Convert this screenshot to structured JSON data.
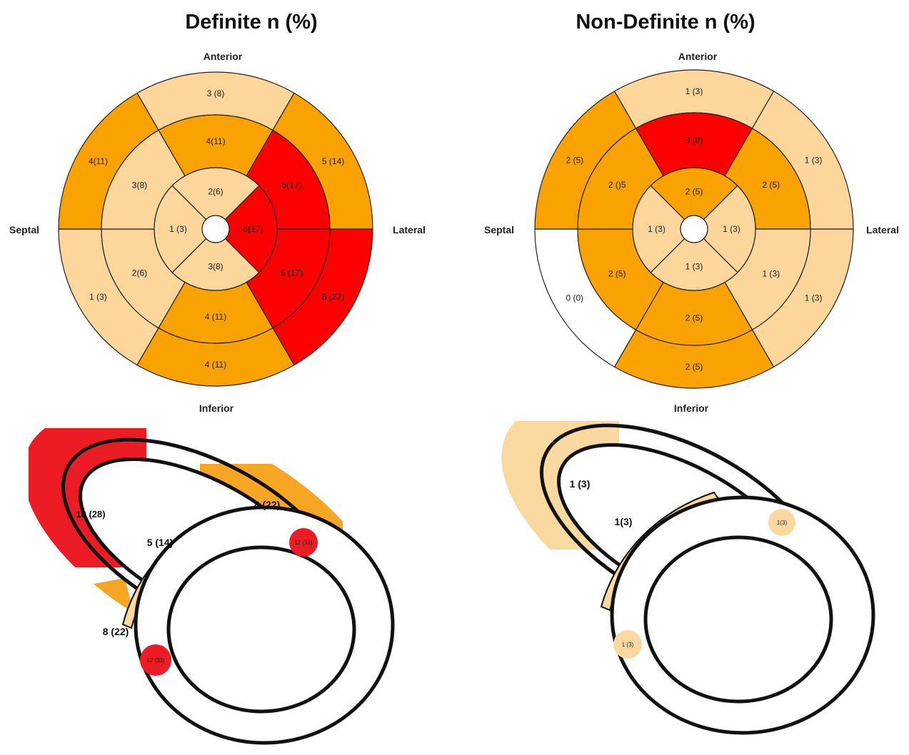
{
  "colors": {
    "low": "#fcd69a",
    "mid": "#f9a200",
    "high": "#fe0000",
    "zero": "#ffffff",
    "cut_red": "#ec1c24",
    "cut_orange": "#f6a623",
    "cut_beige": "#f9d9a0",
    "outline": "#222222"
  },
  "panels": [
    {
      "title": "Definite n (%)",
      "directions": {
        "anterior": "Anterior",
        "septal": "Septal",
        "lateral": "Lateral",
        "inferior": "Inferior"
      },
      "segments": {
        "basal": [
          {
            "label": "3 (8)",
            "level": "low"
          },
          {
            "label": "5 (14)",
            "level": "mid"
          },
          {
            "label": "8 (22)",
            "level": "high"
          },
          {
            "label": "4 (11)",
            "level": "mid"
          },
          {
            "label": "1 (3)",
            "level": "low"
          },
          {
            "label": "4(11)",
            "level": "mid"
          }
        ],
        "mid": [
          {
            "label": "4(11)",
            "level": "mid"
          },
          {
            "label": "6(17)",
            "level": "high"
          },
          {
            "label": "6 (17)",
            "level": "high"
          },
          {
            "label": "4 (11)",
            "level": "mid"
          },
          {
            "label": "2(6)",
            "level": "low"
          },
          {
            "label": "3(8)",
            "level": "low"
          }
        ],
        "apical": [
          {
            "label": "2(6)",
            "level": "low"
          },
          {
            "label": "6(17)",
            "level": "high"
          },
          {
            "label": "3(8)",
            "level": "low"
          },
          {
            "label": "1 (3)",
            "level": "low"
          }
        ]
      },
      "cutaway": {
        "labels": [
          "10 (28)",
          "8 (22)",
          "5 (14)",
          "8 (22)",
          "12 (33)",
          "12 (33)"
        ]
      }
    },
    {
      "title": "Non-Definite n (%)",
      "directions": {
        "anterior": "Anterior",
        "septal": "Septal",
        "lateral": "Lateral",
        "inferior": "Inferior"
      },
      "segments": {
        "basal": [
          {
            "label": "1 (3)",
            "level": "low"
          },
          {
            "label": "1 (3)",
            "level": "low"
          },
          {
            "label": "1 (3)",
            "level": "low"
          },
          {
            "label": "2 (5)",
            "level": "mid"
          },
          {
            "label": "0 (0)",
            "level": "zero"
          },
          {
            "label": "2 (5)",
            "level": "mid"
          }
        ],
        "mid": [
          {
            "label": "3 (8)",
            "level": "high"
          },
          {
            "label": "2 (5)",
            "level": "mid"
          },
          {
            "label": "1 (3)",
            "level": "low"
          },
          {
            "label": "2 (5)",
            "level": "mid"
          },
          {
            "label": "2 (5)",
            "level": "mid"
          },
          {
            "label": "2 ()5",
            "level": "mid"
          }
        ],
        "apical": [
          {
            "label": "2 (5)",
            "level": "mid"
          },
          {
            "label": "1 (3)",
            "level": "low"
          },
          {
            "label": "1 (3)",
            "level": "low"
          },
          {
            "label": "1 (3)",
            "level": "low"
          }
        ]
      },
      "cutaway": {
        "labels": [
          "1 (3)",
          "1(3)",
          "1(3)",
          "1 (3)"
        ]
      }
    }
  ]
}
